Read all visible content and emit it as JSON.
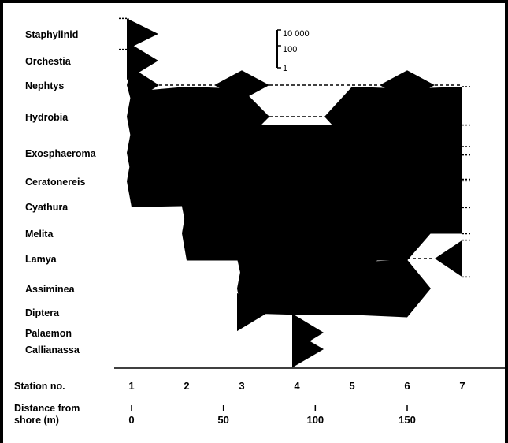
{
  "chart_data": {
    "type": "kite",
    "x_axis_label": "Station no.",
    "stations": [
      1,
      2,
      3,
      4,
      5,
      6,
      7
    ],
    "distance_axis_label_line1": "Distance from",
    "distance_axis_label_line2": "shore (m)",
    "distance_ticks": [
      0,
      50,
      100,
      150
    ],
    "scale_ticks": [
      "10 000",
      "100",
      "1"
    ],
    "species": [
      {
        "name": "Staphylinid",
        "stations": [
          1
        ],
        "values": [
          80
        ],
        "continues_left": true,
        "continues_right": false
      },
      {
        "name": "Orchestia",
        "stations": [
          1
        ],
        "values": [
          400
        ],
        "continues_left": false,
        "continues_right": false
      },
      {
        "name": "Nephtys",
        "stations": [
          1,
          2,
          3,
          4,
          5,
          6,
          7
        ],
        "values": [
          200,
          0,
          60,
          0,
          0,
          60,
          0
        ],
        "continues_left": false,
        "continues_right": false
      },
      {
        "name": "Hydrobia",
        "stations": [
          1,
          2,
          3,
          4,
          5,
          6,
          7
        ],
        "values": [
          6000,
          50000,
          20000,
          0,
          50000,
          20000,
          50000
        ],
        "continues_left": false,
        "continues_right": true
      },
      {
        "name": "Exosphaeroma",
        "stations": [
          1,
          2,
          3,
          4,
          5,
          6,
          7
        ],
        "values": [
          5000,
          50000,
          30000,
          20000,
          20000,
          20000,
          20000
        ],
        "continues_left": false,
        "continues_right": true
      },
      {
        "name": "Ceratonereis",
        "stations": [
          1,
          2,
          3,
          4,
          5,
          6,
          7
        ],
        "values": [
          8000,
          5000,
          1500,
          2000,
          10000,
          10000,
          10000
        ],
        "continues_left": false,
        "continues_right": true
      },
      {
        "name": "Cyathura",
        "stations": [
          2,
          3,
          4,
          5,
          6,
          7
        ],
        "values": [
          3000,
          15000,
          15000,
          10000,
          15000,
          15000
        ],
        "continues_left": false,
        "continues_right": true
      },
      {
        "name": "Melita",
        "stations": [
          2,
          3,
          4,
          5,
          6
        ],
        "values": [
          15000,
          15000,
          15000,
          15000,
          15000
        ],
        "continues_left": false,
        "continues_right": false
      },
      {
        "name": "Lamya",
        "stations": [
          3,
          4,
          5,
          6,
          7
        ],
        "values": [
          1000,
          15000,
          1500,
          0,
          300
        ],
        "continues_left": false,
        "continues_right": true
      },
      {
        "name": "Assiminea",
        "stations": [
          3,
          4,
          5,
          6
        ],
        "values": [
          5000,
          10000,
          10000,
          30000
        ],
        "continues_left": false,
        "continues_right": false
      },
      {
        "name": "Diptera",
        "stations": [
          3
        ],
        "values": [
          400
        ],
        "continues_left": false,
        "continues_right": false
      },
      {
        "name": "Palaemon",
        "stations": [
          4
        ],
        "values": [
          400
        ],
        "continues_left": false,
        "continues_right": false
      },
      {
        "name": "Callianassa",
        "stations": [
          4
        ],
        "values": [
          300
        ],
        "continues_left": false,
        "continues_right": false
      }
    ]
  }
}
